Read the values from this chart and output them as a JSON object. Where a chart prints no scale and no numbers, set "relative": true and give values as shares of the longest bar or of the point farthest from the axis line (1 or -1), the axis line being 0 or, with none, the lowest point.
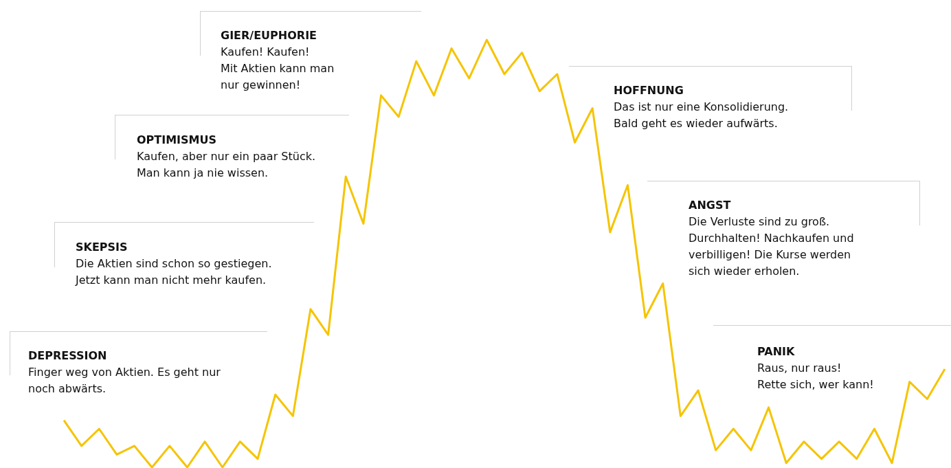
{
  "chart_data": {
    "type": "line",
    "relative": true,
    "color": "#f5c400",
    "marker": "none",
    "categories": [
      null,
      null,
      null,
      null,
      null,
      null,
      null,
      null,
      null,
      null,
      null,
      null,
      null,
      null,
      null,
      null,
      null,
      null,
      null,
      null,
      null,
      null,
      null,
      null,
      null,
      null,
      null,
      null,
      null,
      null,
      null,
      null,
      null,
      null,
      null,
      null,
      null,
      null,
      null,
      null,
      null,
      null,
      null,
      null,
      null,
      null,
      null,
      null,
      null,
      null,
      null
    ],
    "values": [
      0.11,
      0.05,
      0.09,
      0.03,
      0.05,
      0,
      0.05,
      0,
      0.06,
      0,
      0.06,
      0.02,
      0.17,
      0.12,
      0.37,
      0.31,
      0.68,
      0.57,
      0.87,
      0.82,
      0.95,
      0.87,
      0.98,
      0.91,
      1,
      0.92,
      0.97,
      0.88,
      0.92,
      0.76,
      0.84,
      0.55,
      0.66,
      0.35,
      0.43,
      0.12,
      0.18,
      0.04,
      0.09,
      0.04,
      0.14,
      0.01,
      0.06,
      0.02,
      0.06,
      0.02,
      0.09,
      0.01,
      0.2,
      0.16,
      0.23
    ],
    "annotations": [
      "DEPRESSION\nFinger weg von Aktien. Es geht nur\nnoch abwärts.",
      "SKEPSIS\nDie Aktien sind schon so gestiegen.\nJetzt kann man nicht mehr kaufen.",
      "OPTIMISMUS\nKaufen, aber nur ein paar Stück.\nMan kann ja nie wissen.",
      "GIER/EUPHORIE\nKaufen! Kaufen!\nMit Aktien kann man\nnur gewinnen!",
      "HOFFNUNG\nDas ist nur eine Konsolidierung.\nBald geht es wieder aufwärts.",
      "ANGST\nDie Verluste sind zu groß.\nDurchhalten! Nachkaufen und\nverbilligen! Die Kurse werden\nsich wieder erholen.",
      "PANIK\nRaus, nur raus!\nRette sich, wer kann!"
    ]
  }
}
